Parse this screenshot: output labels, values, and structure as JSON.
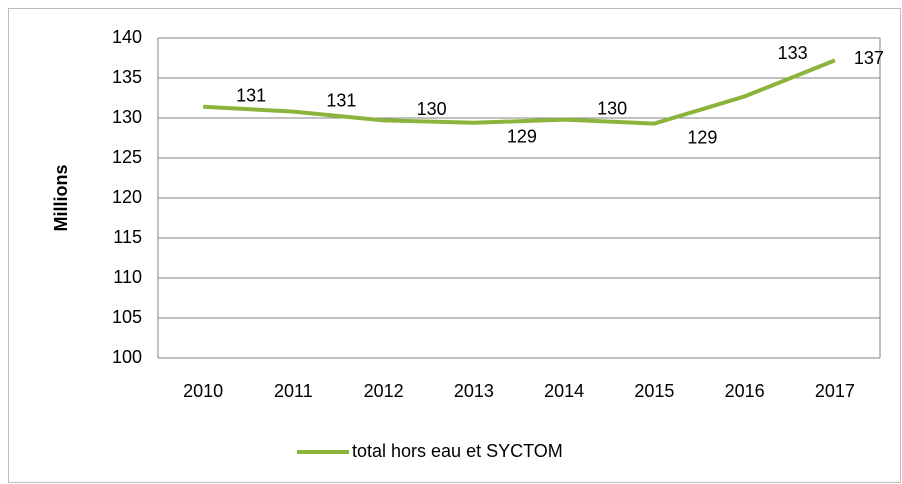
{
  "chart_data": {
    "type": "line",
    "categories": [
      "2010",
      "2011",
      "2012",
      "2013",
      "2014",
      "2015",
      "2016",
      "2017"
    ],
    "series": [
      {
        "name": "total hors eau et SYCTOM",
        "color": "#8cb43c",
        "values": [
          131.4,
          130.8,
          129.7,
          129.4,
          129.8,
          129.3,
          132.7,
          137.2
        ],
        "value_labels": [
          "131",
          "131",
          "130",
          "129",
          "130",
          "129",
          "133",
          "137"
        ]
      }
    ],
    "ylabel": "Millions",
    "ylim": [
      100,
      140
    ],
    "yticks": [
      100,
      105,
      110,
      115,
      120,
      125,
      130,
      135,
      140
    ],
    "grid": true,
    "legend": "bottom"
  }
}
